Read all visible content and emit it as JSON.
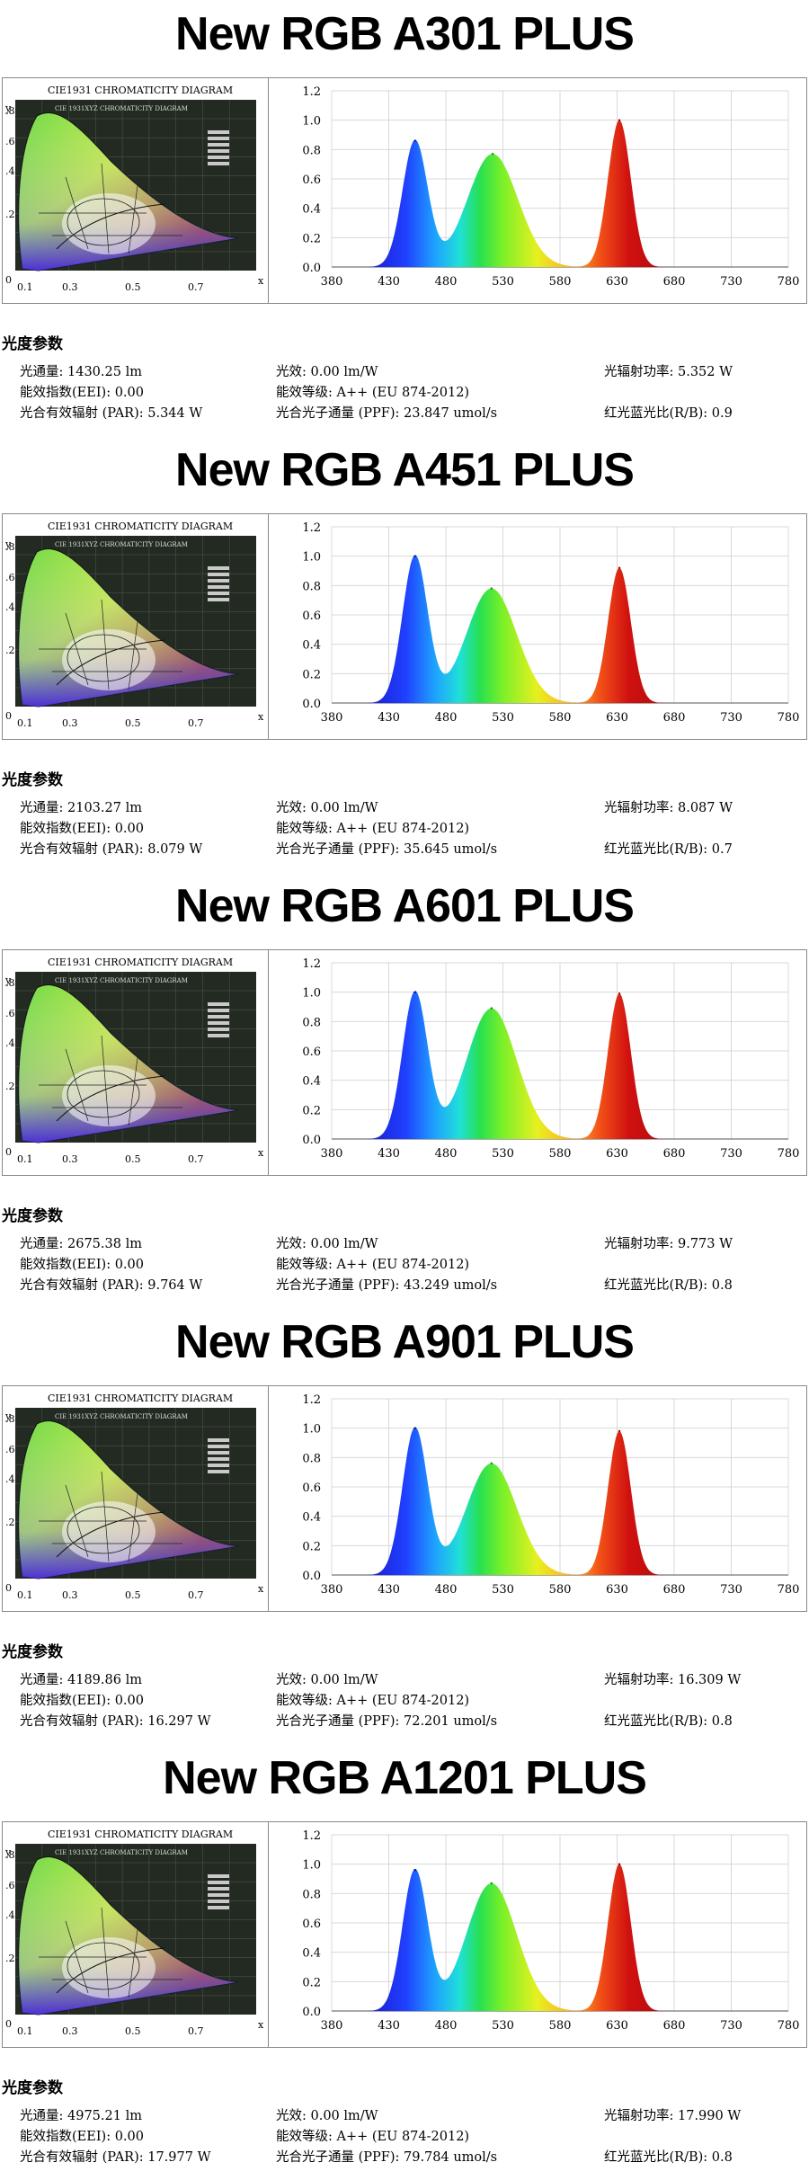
{
  "colors": {
    "blue": "#2030e0",
    "green": "#30d030",
    "red": "#d01818",
    "grid": "#d8d8d8",
    "cie_bg": "#222a22"
  },
  "cie": {
    "title": "CIE1931 CHROMATICITY DIAGRAM",
    "inner_title": "CIE 1931XYZ CHROMATICITY DIAGRAM",
    "y_axis_label": "y",
    "x_axis_label": "x",
    "y_ticks": [
      ".8",
      ".6",
      ".4",
      ".2",
      "0"
    ],
    "x_ticks": [
      "0.1",
      "0.3",
      "0.5",
      "0.7"
    ]
  },
  "params_heading": "光度参数",
  "sections": [
    {
      "title": "New RGB A301 PLUS",
      "params": {
        "flux": "光通量: 1430.25 lm",
        "efficacy": "光效: 0.00 lm/W",
        "radiant_power": "光辐射功率: 5.352 W",
        "eei": "能效指数(EEI): 0.00",
        "energy_class": "能效等级: A++ (EU 874-2012)",
        "par": "光合有效辐射 (PAR): 5.344 W",
        "ppf": "光合光子通量 (PPF): 23.847 umol/s",
        "rb_ratio": "红光蓝光比(R/B): 0.9"
      }
    },
    {
      "title": "New RGB A451 PLUS",
      "params": {
        "flux": "光通量: 2103.27 lm",
        "efficacy": "光效: 0.00 lm/W",
        "radiant_power": "光辐射功率: 8.087 W",
        "eei": "能效指数(EEI): 0.00",
        "energy_class": "能效等级: A++ (EU 874-2012)",
        "par": "光合有效辐射 (PAR): 8.079 W",
        "ppf": "光合光子通量 (PPF): 35.645 umol/s",
        "rb_ratio": "红光蓝光比(R/B): 0.7"
      }
    },
    {
      "title": "New RGB A601 PLUS",
      "params": {
        "flux": "光通量: 2675.38 lm",
        "efficacy": "光效: 0.00 lm/W",
        "radiant_power": "光辐射功率: 9.773 W",
        "eei": "能效指数(EEI): 0.00",
        "energy_class": "能效等级: A++ (EU 874-2012)",
        "par": "光合有效辐射 (PAR): 9.764 W",
        "ppf": "光合光子通量 (PPF): 43.249 umol/s",
        "rb_ratio": "红光蓝光比(R/B): 0.8"
      }
    },
    {
      "title": "New RGB A901 PLUS",
      "params": {
        "flux": "光通量: 4189.86 lm",
        "efficacy": "光效: 0.00 lm/W",
        "radiant_power": "光辐射功率: 16.309 W",
        "eei": "能效指数(EEI): 0.00",
        "energy_class": "能效等级: A++ (EU 874-2012)",
        "par": "光合有效辐射 (PAR): 16.297 W",
        "ppf": "光合光子通量 (PPF): 72.201 umol/s",
        "rb_ratio": "红光蓝光比(R/B): 0.8"
      }
    },
    {
      "title": "New RGB A1201 PLUS",
      "params": {
        "flux": "光通量: 4975.21 lm",
        "efficacy": "光效: 0.00 lm/W",
        "radiant_power": "光辐射功率: 17.990 W",
        "eei": "能效指数(EEI): 0.00",
        "energy_class": "能效等级: A++ (EU 874-2012)",
        "par": "光合有效辐射 (PAR): 17.977 W",
        "ppf": "光合光子通量 (PPF): 79.784 umol/s",
        "rb_ratio": "红光蓝光比(R/B): 0.8"
      }
    }
  ],
  "chart_data": [
    {
      "type": "area",
      "x_ticks": [
        380,
        430,
        480,
        530,
        580,
        630,
        680,
        730,
        780
      ],
      "y_ticks": [
        "0.0",
        "0.2",
        "0.4",
        "0.6",
        "0.8",
        "1.0",
        "1.2"
      ],
      "xlim": [
        380,
        780
      ],
      "ylim": [
        0,
        1.2
      ],
      "grid": true,
      "peaks": [
        {
          "nm": 453,
          "value": 0.86
        },
        {
          "nm": 521,
          "value": 0.77
        },
        {
          "nm": 632,
          "value": 1.0
        }
      ]
    },
    {
      "type": "area",
      "x_ticks": [
        380,
        430,
        480,
        530,
        580,
        630,
        680,
        730,
        780
      ],
      "y_ticks": [
        "0.0",
        "0.2",
        "0.4",
        "0.6",
        "0.8",
        "1.0",
        "1.2"
      ],
      "xlim": [
        380,
        780
      ],
      "ylim": [
        0,
        1.2
      ],
      "grid": true,
      "peaks": [
        {
          "nm": 453,
          "value": 1.0
        },
        {
          "nm": 520,
          "value": 0.78
        },
        {
          "nm": 632,
          "value": 0.92
        }
      ]
    },
    {
      "type": "area",
      "x_ticks": [
        380,
        430,
        480,
        530,
        580,
        630,
        680,
        730,
        780
      ],
      "y_ticks": [
        "0.0",
        "0.2",
        "0.4",
        "0.6",
        "0.8",
        "1.0",
        "1.2"
      ],
      "xlim": [
        380,
        780
      ],
      "ylim": [
        0,
        1.2
      ],
      "grid": true,
      "peaks": [
        {
          "nm": 453,
          "value": 1.0
        },
        {
          "nm": 520,
          "value": 0.89
        },
        {
          "nm": 632,
          "value": 0.99
        }
      ]
    },
    {
      "type": "area",
      "x_ticks": [
        380,
        430,
        480,
        530,
        580,
        630,
        680,
        730,
        780
      ],
      "y_ticks": [
        "0.0",
        "0.2",
        "0.4",
        "0.6",
        "0.8",
        "1.0",
        "1.2"
      ],
      "xlim": [
        380,
        780
      ],
      "ylim": [
        0,
        1.2
      ],
      "grid": true,
      "peaks": [
        {
          "nm": 453,
          "value": 1.0
        },
        {
          "nm": 520,
          "value": 0.76
        },
        {
          "nm": 632,
          "value": 0.98
        }
      ]
    },
    {
      "type": "area",
      "x_ticks": [
        380,
        430,
        480,
        530,
        580,
        630,
        680,
        730,
        780
      ],
      "y_ticks": [
        "0.0",
        "0.2",
        "0.4",
        "0.6",
        "0.8",
        "1.0",
        "1.2"
      ],
      "xlim": [
        380,
        780
      ],
      "ylim": [
        0,
        1.2
      ],
      "grid": true,
      "peaks": [
        {
          "nm": 453,
          "value": 0.96
        },
        {
          "nm": 520,
          "value": 0.87
        },
        {
          "nm": 632,
          "value": 1.0
        }
      ]
    }
  ]
}
